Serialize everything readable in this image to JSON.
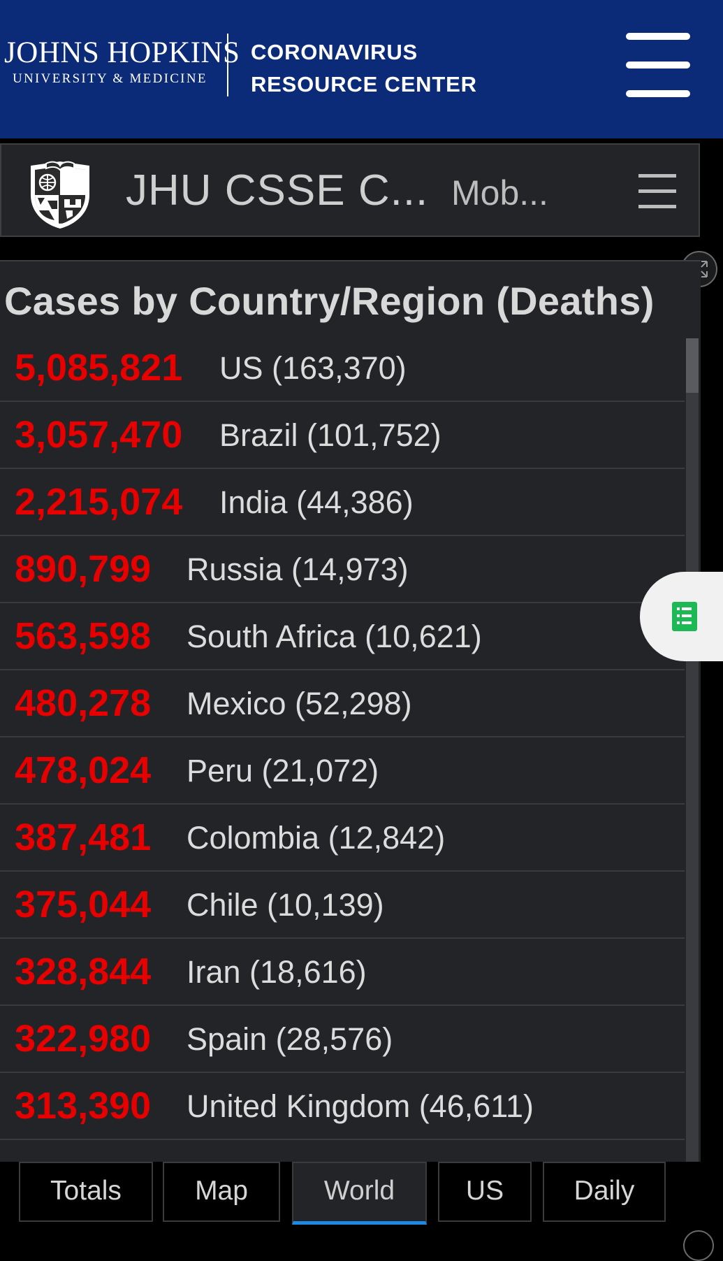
{
  "site_header": {
    "logo_name": "JOHNS HOPKINS",
    "logo_sub": "UNIVERSITY & MEDICINE",
    "center_line1": "CORONAVIRUS",
    "center_line2": "RESOURCE CENTER",
    "menu_icon": "hamburger-icon"
  },
  "dashboard_header": {
    "title": "JHU CSSE C...",
    "mobile_link": "Mob...",
    "logo_icon": "jhu-shield-icon",
    "menu_icon": "hamburger-icon"
  },
  "panel": {
    "title": "Cases by Country/Region (Deaths)",
    "expand_icon": "expand-icon",
    "side_icon": "document-icon",
    "rows": [
      {
        "cases": "5,085,821",
        "country": "US (163,370)"
      },
      {
        "cases": "3,057,470",
        "country": "Brazil (101,752)"
      },
      {
        "cases": "2,215,074",
        "country": "India (44,386)"
      },
      {
        "cases": "890,799",
        "country": "Russia (14,973)"
      },
      {
        "cases": "563,598",
        "country": "South Africa (10,621)"
      },
      {
        "cases": "480,278",
        "country": "Mexico (52,298)"
      },
      {
        "cases": "478,024",
        "country": "Peru (21,072)"
      },
      {
        "cases": "387,481",
        "country": "Colombia (12,842)"
      },
      {
        "cases": "375,044",
        "country": "Chile (10,139)"
      },
      {
        "cases": "328,844",
        "country": "Iran (18,616)"
      },
      {
        "cases": "322,980",
        "country": "Spain (28,576)"
      },
      {
        "cases": "313,390",
        "country": "United Kingdom (46,611)"
      }
    ]
  },
  "tabs": [
    {
      "label": "Totals",
      "active": false
    },
    {
      "label": "Map",
      "active": false
    },
    {
      "label": "World",
      "active": true
    },
    {
      "label": "US",
      "active": false
    },
    {
      "label": "Daily",
      "active": false
    }
  ],
  "colors": {
    "header_blue": "#0b2a78",
    "case_red": "#e60000",
    "active_tab_underline": "#1e88e5",
    "panel_bg": "#232427"
  }
}
